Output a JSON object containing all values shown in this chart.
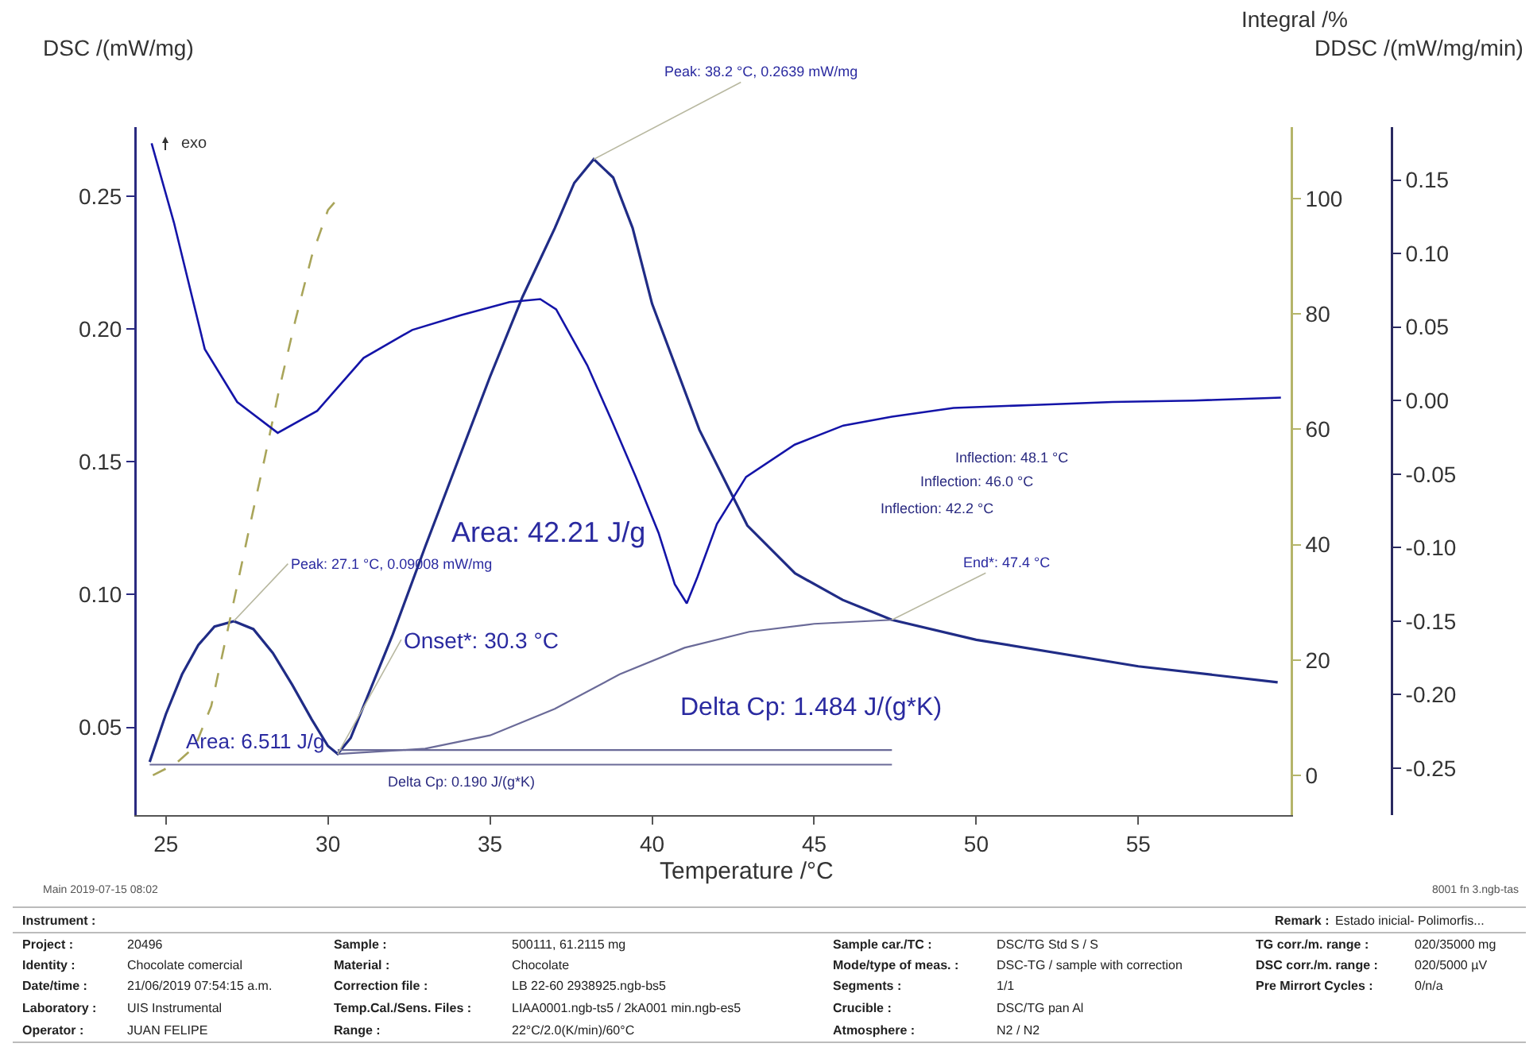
{
  "chart_data": {
    "type": "line",
    "xlabel": "Temperature /°C",
    "ylabel": "DSC /(mW/mg)",
    "y2label": "Integral /%",
    "y3label": "DDSC /(mW/mg/min)",
    "xlim": [
      24.1,
      59.7
    ],
    "xticks": [
      25,
      30,
      35,
      40,
      45,
      50,
      55
    ],
    "ylim": [
      0.017,
      0.276
    ],
    "yticks": [
      {
        "value": 0.05,
        "label": "0.05"
      },
      {
        "value": 0.1,
        "label": "0.10"
      },
      {
        "value": 0.15,
        "label": "0.15"
      },
      {
        "value": 0.2,
        "label": "0.20"
      },
      {
        "value": 0.25,
        "label": "0.25"
      }
    ],
    "y2lim": [
      -6.9,
      112.4
    ],
    "y2ticks": [
      0,
      20,
      40,
      60,
      80,
      100
    ],
    "y3lim": [
      -0.282,
      0.186
    ],
    "y3ticks": [
      {
        "value": -0.25,
        "label": "-0.25"
      },
      {
        "value": -0.2,
        "label": "-0.20"
      },
      {
        "value": -0.15,
        "label": "-0.15"
      },
      {
        "value": -0.1,
        "label": "-0.10"
      },
      {
        "value": -0.05,
        "label": "-0.05"
      },
      {
        "value": 0,
        "label": "0.00"
      },
      {
        "value": 0.05,
        "label": "0.05"
      },
      {
        "value": 0.1,
        "label": "0.10"
      },
      {
        "value": 0.15,
        "label": "0.15"
      }
    ],
    "grid": false,
    "marker": "none",
    "series": [
      {
        "axis": "y",
        "color": "#202c86",
        "x": [
          24.5,
          25,
          25.5,
          26,
          26.5,
          27.1,
          27.7,
          28.3,
          28.9,
          29.5,
          30,
          30.3,
          30.7,
          31,
          32,
          33,
          34,
          35,
          36,
          37,
          37.6,
          38.2,
          38.8,
          39.4,
          40,
          41.46,
          42.94,
          44.41,
          45.88,
          47.4,
          50,
          55,
          59.3
        ],
        "values": [
          0.037,
          0.055,
          0.07,
          0.081,
          0.088,
          0.09,
          0.087,
          0.078,
          0.066,
          0.053,
          0.043,
          0.04,
          0.046,
          0.055,
          0.085,
          0.118,
          0.15,
          0.182,
          0.212,
          0.238,
          0.255,
          0.2639,
          0.257,
          0.238,
          0.2095,
          0.162,
          0.126,
          0.108,
          0.098,
          0.0905,
          0.083,
          0.073,
          0.067
        ]
      },
      {
        "axis": "y2",
        "color": "#a9a55a",
        "line_style": "dashed",
        "x": [
          24.6,
          25.3,
          25.9,
          26.4,
          26.9,
          27.6,
          28.05,
          28.5,
          29,
          29.5,
          30,
          30.3
        ],
        "values": [
          0,
          2,
          5,
          12,
          25,
          43.5,
          55,
          67,
          79,
          90,
          98,
          100
        ]
      },
      {
        "axis": "y3",
        "color": "#1414a8",
        "x": [
          24.56,
          25.25,
          26.2,
          27.2,
          28.45,
          29.67,
          31.1,
          32.6,
          34.1,
          35.6,
          36.55,
          37.04,
          38,
          38.76,
          39.5,
          40.2,
          40.7,
          41.07,
          41.4,
          42,
          42.9,
          44.4,
          45.9,
          47.4,
          49.3,
          51.8,
          54.2,
          56.7,
          59.4
        ],
        "values": [
          0.175,
          0.121,
          0.035,
          -0.001,
          -0.022,
          -0.007,
          0.029,
          0.048,
          0.058,
          0.067,
          0.069,
          0.062,
          0.024,
          -0.014,
          -0.052,
          -0.09,
          -0.125,
          -0.138,
          -0.12,
          -0.084,
          -0.052,
          -0.03,
          -0.017,
          -0.011,
          -0.005,
          -0.003,
          -0.001,
          0,
          0.002
        ]
      },
      {
        "axis": "y",
        "color": "#6a6a98",
        "x": [
          30.3,
          33,
          35,
          37,
          39,
          41,
          43,
          45,
          47.4
        ],
        "values": [
          0.04,
          0.042,
          0.047,
          0.057,
          0.07,
          0.08,
          0.086,
          0.089,
          0.0905
        ]
      },
      {
        "axis": "y",
        "color": "#6a6a98",
        "x": [
          24.5,
          47.4
        ],
        "values": [
          0.036,
          0.036
        ]
      },
      {
        "axis": "y",
        "color": "#6a6a98",
        "x": [
          30.3,
          47.4
        ],
        "values": [
          0.0415,
          0.0415
        ]
      }
    ],
    "annotations": [
      {
        "text": "Peak: 38.2 °C, 0.2639 mW/mg",
        "x": 38.2,
        "y": 0.2639
      },
      {
        "text": "Peak: 27.1 °C, 0.09008 mW/mg",
        "x": 27.1,
        "y": 0.09008
      },
      {
        "text": "Onset*: 30.3 °C",
        "x": 30.3,
        "y": 0.04
      },
      {
        "text": "End*: 47.4 °C",
        "x": 47.4,
        "y": 0.0905
      },
      "Area: 42.21 J/g",
      "Area: 6.511 J/g",
      "Delta Cp: 1.484 J/(g*K)",
      "Delta Cp: 0.190 J/(g*K)",
      "Inflection: 48.1 °C",
      "Inflection: 46.0 °C",
      "Inflection: 42.2 °C",
      "exo",
      "Main 2019-07-15 08:02",
      "8001 fn 3.ngb-tas",
      "Instrument :",
      "Remark :",
      "Estado inicial- Polimorfis...",
      "Project :",
      "20496",
      "Sample :",
      "500111, 61.2115 mg",
      "Sample car./TC :",
      "DSC/TG Std S / S",
      "TG corr./m. range :",
      "020/35000 mg",
      "Identity :",
      "Chocolate comercial",
      "Material :",
      "Chocolate",
      "Mode/type of meas. :",
      "DSC-TG / sample with correction",
      "DSC corr./m. range :",
      "020/5000 µV",
      "Date/time :",
      "21/06/2019 07:54:15 a.m.",
      "Correction file :",
      "LB 22-60 2938925.ngb-bs5",
      "Segments :",
      "1/1",
      "Pre Mirrort Cycles :",
      "0/n/a",
      "Laboratory :",
      "UIS Instrumental",
      "Temp.Cal./Sens. Files :",
      "LIAA0001.ngb-ts5 / 2kA001 min.ngb-es5",
      "Crucible :",
      "DSC/TG pan Al",
      "Operator :",
      "JUAN FELIPE",
      "Range :",
      "22°C/2.0(K/min)/60°C",
      "Atmosphere :",
      "N2 / N2"
    ]
  }
}
